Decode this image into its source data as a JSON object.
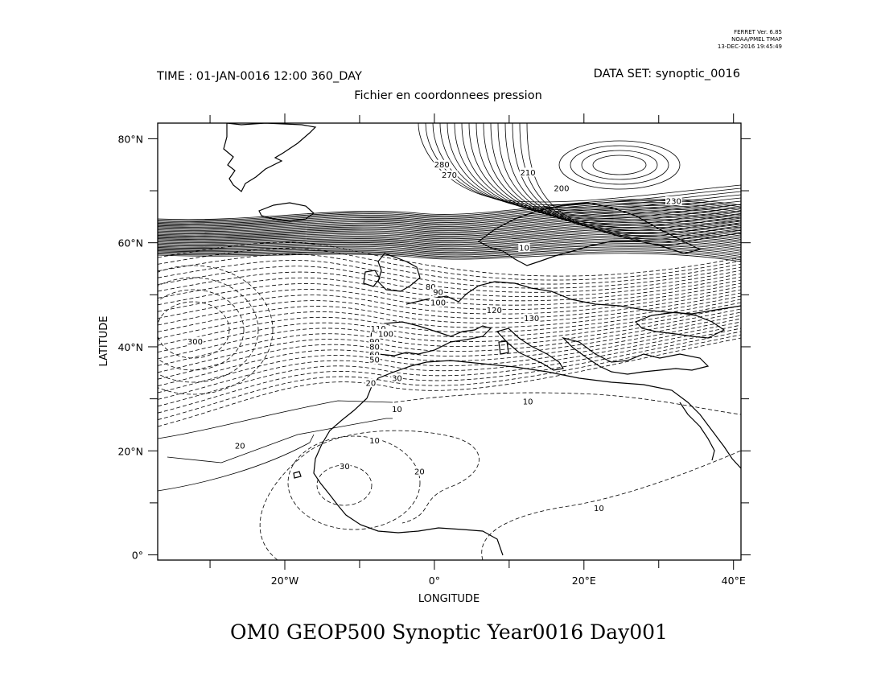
{
  "header": {
    "software": "FERRET Ver. 6.85",
    "org": "NOAA/PMEL TMAP",
    "date": "13-DEC-2016 19:45:49",
    "time": "TIME : 01-JAN-0016 12:00 360_DAY",
    "dataset": "DATA SET: synoptic_0016",
    "subtitle": "Fichier en coordonnees pression"
  },
  "axes": {
    "xlabel": "LONGITUDE",
    "ylabel": "LATITUDE",
    "xticks": [
      {
        "value": -20,
        "label": "20°W"
      },
      {
        "value": 0,
        "label": "0°"
      },
      {
        "value": 20,
        "label": "20°E"
      },
      {
        "value": 40,
        "label": "40°E"
      }
    ],
    "yticks": [
      {
        "value": 0,
        "label": "0°"
      },
      {
        "value": 20,
        "label": "20°N"
      },
      {
        "value": 40,
        "label": "40°N"
      },
      {
        "value": 60,
        "label": "60°N"
      },
      {
        "value": 80,
        "label": "80°N"
      }
    ],
    "xlim": [
      -37,
      41
    ],
    "ylim": [
      -1,
      83
    ]
  },
  "contour_labels": [
    {
      "text": "280",
      "lon": 1,
      "lat": 75
    },
    {
      "text": "270",
      "lon": 2,
      "lat": 73
    },
    {
      "text": "210",
      "lon": 12.5,
      "lat": 73.5
    },
    {
      "text": "200",
      "lon": 17,
      "lat": 70.5
    },
    {
      "text": "230",
      "lon": 32,
      "lat": 68
    },
    {
      "text": "10",
      "lon": 12,
      "lat": 59
    },
    {
      "text": "80",
      "lon": -0.5,
      "lat": 51.5
    },
    {
      "text": "90",
      "lon": 0.5,
      "lat": 50.5
    },
    {
      "text": "100",
      "lon": 0.5,
      "lat": 48.5
    },
    {
      "text": "120",
      "lon": 8,
      "lat": 47
    },
    {
      "text": "130",
      "lon": 13,
      "lat": 45.5
    },
    {
      "text": "110",
      "lon": -7.5,
      "lat": 43.5
    },
    {
      "text": "100",
      "lon": -6.5,
      "lat": 42.5
    },
    {
      "text": "90",
      "lon": -8,
      "lat": 41
    },
    {
      "text": "80",
      "lon": -8,
      "lat": 40
    },
    {
      "text": "60",
      "lon": -8,
      "lat": 38.5
    },
    {
      "text": "50",
      "lon": -8,
      "lat": 37.5
    },
    {
      "text": "300",
      "lon": -32,
      "lat": 41
    },
    {
      "text": "30",
      "lon": -5,
      "lat": 34
    },
    {
      "text": "20",
      "lon": -8.5,
      "lat": 33
    },
    {
      "text": "10",
      "lon": 12.5,
      "lat": 29.5
    },
    {
      "text": "10",
      "lon": -5,
      "lat": 28
    },
    {
      "text": "20",
      "lon": -26,
      "lat": 21
    },
    {
      "text": "10",
      "lon": -8,
      "lat": 22
    },
    {
      "text": "30",
      "lon": -12,
      "lat": 17
    },
    {
      "text": "20",
      "lon": -2,
      "lat": 16
    },
    {
      "text": "10",
      "lon": 22,
      "lat": 9
    }
  ],
  "footer": {
    "title": "OM0 GEOP500 Synoptic Year0016 Day001"
  }
}
